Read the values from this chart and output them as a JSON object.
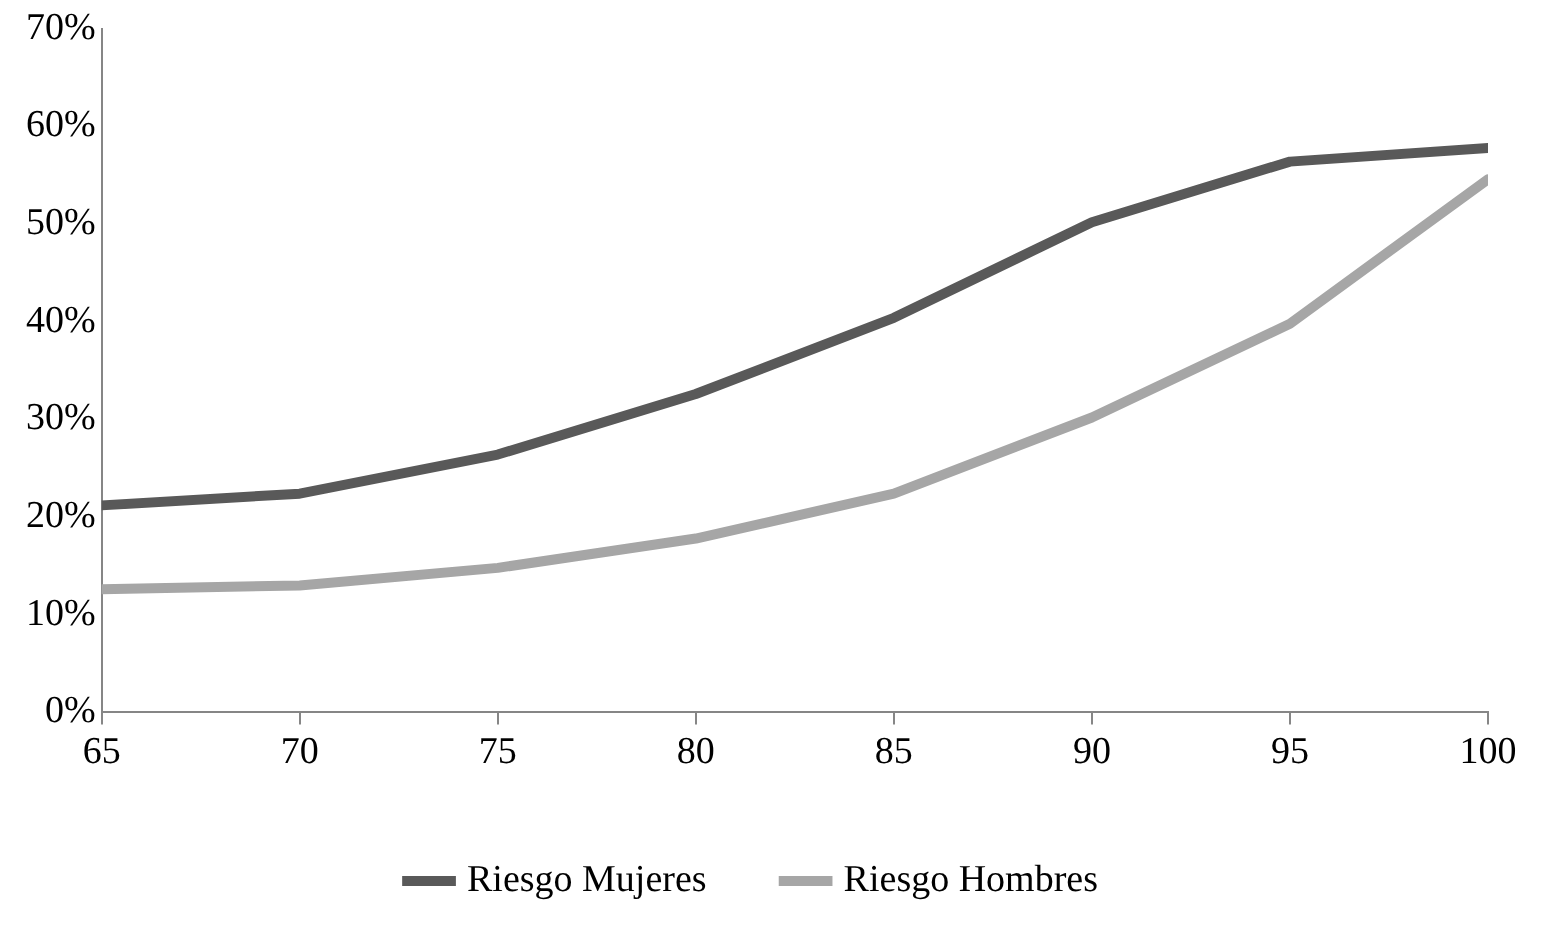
{
  "chart_data": {
    "type": "line",
    "x": [
      65,
      70,
      75,
      80,
      85,
      90,
      95,
      100
    ],
    "series": [
      {
        "name": "Riesgo Mujeres",
        "color": "#595959",
        "values": [
          21.2,
          22.4,
          26.4,
          32.6,
          40.4,
          50.2,
          56.4,
          57.8
        ]
      },
      {
        "name": "Riesgo Hombres",
        "color": "#a6a6a6",
        "values": [
          12.6,
          13,
          14.8,
          17.8,
          22.4,
          30.2,
          39.8,
          54.6
        ]
      }
    ],
    "xlim": [
      65,
      100
    ],
    "xticks": [
      65,
      70,
      75,
      80,
      85,
      90,
      95,
      100
    ],
    "ylim": [
      0,
      70
    ],
    "yticks": [
      {
        "value": 0,
        "label": "0%"
      },
      {
        "value": 10,
        "label": "10%"
      },
      {
        "value": 20,
        "label": "20%"
      },
      {
        "value": 30,
        "label": "30%"
      },
      {
        "value": 40,
        "label": "40%"
      },
      {
        "value": 50,
        "label": "50%"
      },
      {
        "value": 60,
        "label": "60%"
      },
      {
        "value": 70,
        "label": "70%"
      }
    ],
    "grid": false,
    "legend": "bottom",
    "marker": "none",
    "line_style": "solid"
  }
}
